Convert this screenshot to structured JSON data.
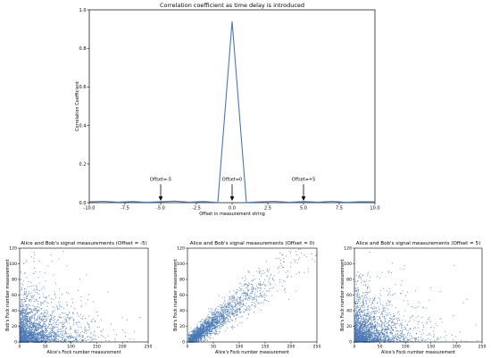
{
  "chart_data": [
    {
      "type": "line",
      "title": "Correlation coefficient as time delay is introduced",
      "xlabel": "Offset in measurement string",
      "ylabel": "Correlation Coefficient",
      "xlim": [
        -10,
        10
      ],
      "ylim": [
        0,
        1.0
      ],
      "grid": false,
      "xticks": [
        -10,
        -7.5,
        -5,
        -2.5,
        0,
        2.5,
        5,
        7.5,
        10
      ],
      "xtick_labels": [
        "-10.0",
        "-7.5",
        "-5.0",
        "-2.5",
        "0.0",
        "2.5",
        "5.0",
        "7.5",
        "10.0"
      ],
      "yticks": [
        0,
        0.2,
        0.4,
        0.6,
        0.8,
        1.0
      ],
      "ytick_labels": [
        "0.0",
        "0.2",
        "0.4",
        "0.6",
        "0.8",
        "1.0"
      ],
      "line_color": "#4a78b5",
      "series": [
        {
          "x": [
            -10,
            -9,
            -8,
            -7,
            -6,
            -5,
            -4,
            -3,
            -2,
            -1,
            0,
            1,
            2,
            3,
            4,
            5,
            6,
            7,
            8,
            9,
            10
          ],
          "values": [
            0.004,
            0.007,
            0.003,
            0.006,
            0.002,
            0.005,
            0.008,
            0.003,
            0.006,
            0.001,
            0.94,
            0.001,
            0.004,
            0.007,
            0.002,
            0.006,
            0.003,
            0.007,
            0.002,
            0.005,
            0.004
          ]
        }
      ],
      "annotations": [
        {
          "text": "Offset=-5",
          "x": -5,
          "y": 0.1
        },
        {
          "text": "Offset=0",
          "x": 0,
          "y": 0.1
        },
        {
          "text": "Offset=+5",
          "x": 5,
          "y": 0.1
        }
      ]
    },
    {
      "type": "scatter",
      "title": "Alice and Bob's signal measurements (Offset = -5)",
      "xlabel": "Alice's Fock number measurement",
      "ylabel": "Bob's Fock number measurement",
      "xlim": [
        0,
        250
      ],
      "ylim": [
        0,
        120
      ],
      "xticks": [
        0,
        50,
        100,
        150,
        200,
        250
      ],
      "yticks": [
        0,
        20,
        40,
        60,
        80,
        100,
        120
      ],
      "marker_color": "#4a78b5",
      "relationship": "uncorrelated; density concentrated near origin, decaying along both axes"
    },
    {
      "type": "scatter",
      "title": "Alice and Bob's signal measurements (Offset = 0)",
      "xlabel": "Alice's Fock number measurement",
      "ylabel": "Bob's Fock number measurement",
      "xlim": [
        0,
        250
      ],
      "ylim": [
        0,
        120
      ],
      "xticks": [
        0,
        50,
        100,
        150,
        200,
        250
      ],
      "yticks": [
        0,
        20,
        40,
        60,
        80,
        100,
        120
      ],
      "marker_color": "#4a78b5",
      "relationship": "strongly correlated; points along y ≈ 0.5·x"
    },
    {
      "type": "scatter",
      "title": "Alice and Bob's signal measurements (Offset = 5)",
      "xlabel": "Alice's Fock number measurement",
      "ylabel": "Bob's Fock number measurement",
      "xlim": [
        0,
        250
      ],
      "ylim": [
        0,
        120
      ],
      "xticks": [
        0,
        50,
        100,
        150,
        200,
        250
      ],
      "yticks": [
        0,
        20,
        40,
        60,
        80,
        100,
        120
      ],
      "marker_color": "#4a78b5",
      "relationship": "uncorrelated; density concentrated near origin, decaying along both axes"
    }
  ]
}
